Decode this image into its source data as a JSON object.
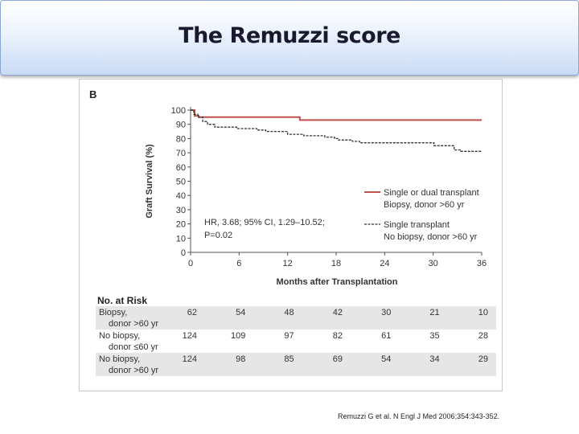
{
  "slide": {
    "title": "The Remuzzi score",
    "citation": "Remuzzi G et al. N Engl J Med 2006;354:343-352."
  },
  "colors": {
    "series_red": "#c0504d",
    "series_black": "#333333",
    "banner_accent": "#c9dbf5",
    "risk_row_shade": "#e6e6e6"
  },
  "chart_data": {
    "type": "line",
    "panel_label": "B",
    "xlabel": "Months after Transplantation",
    "ylabel": "Graft Survival (%)",
    "xlim": [
      0,
      36
    ],
    "ylim": [
      0,
      100
    ],
    "xticks": [
      0,
      6,
      12,
      18,
      24,
      30,
      36
    ],
    "yticks": [
      0,
      10,
      20,
      30,
      40,
      50,
      60,
      70,
      80,
      90,
      100
    ],
    "grid": false,
    "legend_position": "right",
    "annotation": [
      "HR, 3.68; 95% CI, 1.29–10.52;",
      "P=0.02"
    ],
    "series": [
      {
        "name": "Single or dual transplant Biopsy, donor >60 yr",
        "legend_lines": [
          "Single or dual transplant",
          "Biopsy, donor >60 yr"
        ],
        "style": "solid",
        "x": [
          0,
          0.5,
          0.5,
          1.0,
          1.0,
          13.5,
          13.5,
          36
        ],
        "y": [
          100,
          100,
          96,
          96,
          95,
          95,
          93,
          93
        ]
      },
      {
        "name": "Single transplant No biopsy, donor >60 yr",
        "legend_lines": [
          "Single transplant",
          "No biopsy, donor >60 yr"
        ],
        "style": "dashed",
        "x": [
          0,
          0.4,
          0.4,
          0.9,
          0.9,
          1.5,
          1.5,
          2.1,
          2.1,
          3.0,
          3.0,
          5.7,
          5.7,
          8.2,
          8.2,
          9.3,
          9.3,
          12.0,
          12.0,
          14.0,
          14.0,
          16.6,
          16.6,
          17.8,
          17.8,
          18.3,
          18.3,
          20.0,
          20.0,
          20.9,
          20.9,
          30.1,
          30.1,
          32.6,
          32.6,
          33.4,
          33.4,
          36
        ],
        "y": [
          100,
          100,
          97,
          97,
          95,
          95,
          92,
          92,
          90,
          90,
          88,
          88,
          87,
          87,
          86,
          86,
          85,
          85,
          83,
          83,
          82,
          82,
          81,
          81,
          80,
          80,
          79,
          79,
          78,
          78,
          77,
          77,
          75,
          75,
          72,
          72,
          71,
          71
        ]
      }
    ],
    "risk_table": {
      "title": "No. at Risk",
      "timepoints": [
        0,
        6,
        12,
        18,
        24,
        30,
        36
      ],
      "rows": [
        {
          "label1": "Biopsy,",
          "label2": "donor >60 yr",
          "values": [
            "62",
            "54",
            "48",
            "42",
            "30",
            "21",
            "10"
          ]
        },
        {
          "label1": "No biopsy,",
          "label2": "donor ≤60 yr",
          "values": [
            "124",
            "109",
            "97",
            "82",
            "61",
            "35",
            "28"
          ]
        },
        {
          "label1": "No biopsy,",
          "label2": "donor >60 yr",
          "values": [
            "124",
            "98",
            "85",
            "69",
            "54",
            "34",
            "29"
          ]
        }
      ]
    }
  }
}
